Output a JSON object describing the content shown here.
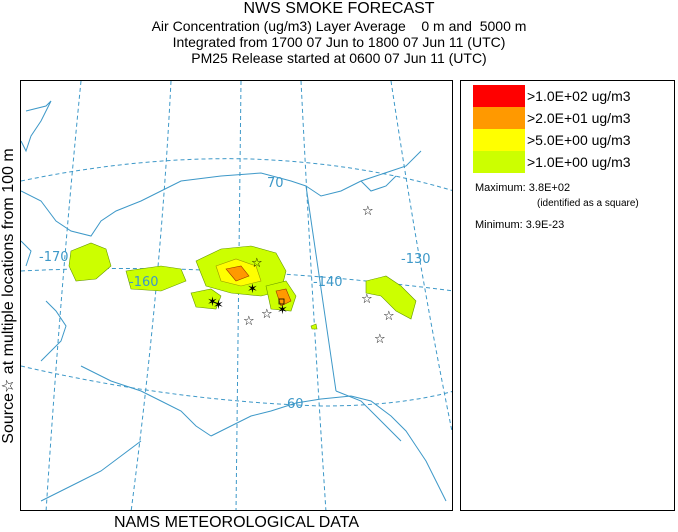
{
  "title": {
    "main": "NWS SMOKE FORECAST",
    "line1": "Air Concentration (ug/m3) Layer Average    0 m and  5000 m",
    "line2": "Integrated from 1700 07 Jun to 1800 07 Jun 11 (UTC)",
    "line3": "PM25 Release started at 0600 07 Jun 11 (UTC)"
  },
  "side_label": {
    "source": "Source",
    "source_icon": "star-icon",
    "text": " at multiple locations      from    100 m"
  },
  "bottom_label": "NAMS METEOROLOGICAL DATA",
  "map": {
    "grid_labels": {
      "lon_170": "-170",
      "lon_160": "-160",
      "lon_140": "-140",
      "lon_130": "-130",
      "lat_70": "70",
      "lat_60": "60"
    },
    "line_color": "#3d98c8"
  },
  "legend": {
    "items": [
      {
        "label": ">1.0E+02 ug/m3",
        "color": "#ff0000"
      },
      {
        "label": ">2.0E+01 ug/m3",
        "color": "#ff9900"
      },
      {
        "label": ">5.0E+00 ug/m3",
        "color": "#ffff00"
      },
      {
        "label": ">1.0E+00 ug/m3",
        "color": "#ccff00"
      }
    ],
    "maximum": "Maximum: 3.8E+02",
    "maximum_note": "(identified as a square)",
    "minimum": "Minimum: 3.9E-23"
  }
}
